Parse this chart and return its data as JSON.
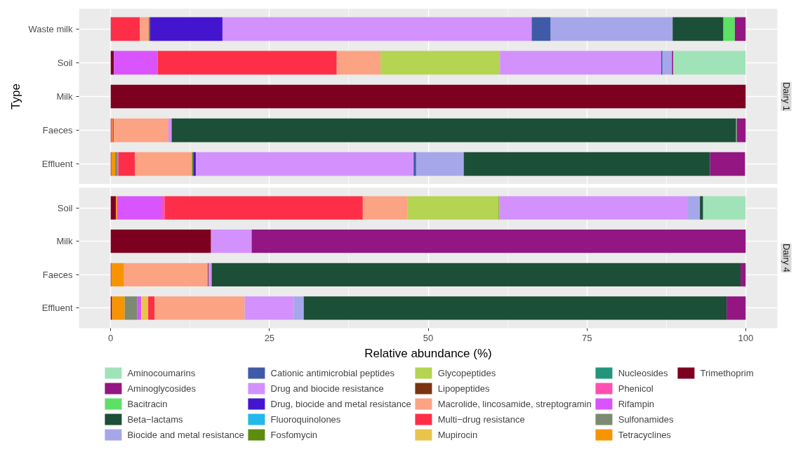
{
  "chart_data": [
    {
      "type": "bar",
      "title": "Dairy 1",
      "orientation": "horizontal",
      "stacked": true,
      "ylabel": "Type",
      "categories": [
        "Waste milk",
        "Soil",
        "Milk",
        "Faeces",
        "Effluent"
      ],
      "xlim": [
        -5,
        105
      ],
      "xticks": [
        0,
        25,
        50,
        75,
        100
      ],
      "grid": true,
      "legend": "bottom",
      "tick_labels": "y",
      "series": [
        {
          "color": "#7e0020",
          "values": [
            0.1,
            0.5,
            100,
            0.1,
            0.1
          ]
        },
        {
          "color": "#f79400",
          "values": [
            0,
            0,
            0,
            0.2,
            0.6
          ]
        },
        {
          "color": "#7d8a72",
          "values": [
            0,
            0,
            0,
            0,
            0.4
          ]
        },
        {
          "color": "#d954fc",
          "values": [
            0,
            6.9,
            0,
            0,
            0.1
          ]
        },
        {
          "color": "#ff4fb0",
          "values": [
            0,
            0,
            0,
            0,
            0
          ]
        },
        {
          "color": "#23957a",
          "values": [
            0,
            0,
            0,
            0,
            0
          ]
        },
        {
          "color": "#e8c44a",
          "values": [
            0,
            0,
            0,
            0,
            0
          ]
        },
        {
          "color": "#ff2e48",
          "values": [
            4.5,
            28.2,
            0,
            0.2,
            2.6
          ]
        },
        {
          "color": "#fca384",
          "values": [
            1.4,
            6.9,
            0,
            8.6,
            9.0
          ]
        },
        {
          "color": "#7a3510",
          "values": [
            0,
            0,
            0,
            0,
            0
          ]
        },
        {
          "color": "#b4d452",
          "values": [
            0,
            18.8,
            0,
            0,
            null
          ]
        },
        {
          "color": "#5e8c10",
          "values": [
            0.2,
            0,
            0,
            0,
            0.2
          ]
        },
        {
          "color": "#26b8e8",
          "values": [
            0,
            0,
            0,
            0,
            0
          ]
        },
        {
          "color": "#4415cf",
          "values": [
            11.4,
            0,
            0,
            0,
            0.4
          ]
        },
        {
          "color": "#d391fd",
          "values": [
            48.7,
            25.4,
            0,
            0.5,
            34.3
          ]
        },
        {
          "color": "#3f5ba8",
          "values": [
            3.0,
            0.2,
            0,
            0,
            0.4
          ]
        },
        {
          "color": "#a5a7ea",
          "values": [
            19.2,
            1.5,
            0,
            0,
            7.5
          ]
        },
        {
          "color": "#1b4f37",
          "values": [
            8.0,
            0,
            0,
            88.9,
            38.8
          ]
        },
        {
          "color": "#5ee065",
          "values": [
            1.8,
            0,
            0,
            0.1,
            0
          ]
        },
        {
          "color": "#931682",
          "values": [
            1.7,
            0.2,
            0,
            1.4,
            5.5
          ]
        },
        {
          "color": "#a1e3b8",
          "values": [
            0,
            11.4,
            0,
            0,
            0
          ]
        }
      ]
    },
    {
      "type": "bar",
      "title": "Dairy 4",
      "orientation": "horizontal",
      "stacked": true,
      "xlabel": "Relative abundance (%)",
      "categories": [
        "Soil",
        "Milk",
        "Faeces",
        "Effluent"
      ],
      "xlim": [
        -5,
        105
      ],
      "xticks": [
        0,
        25,
        50,
        75,
        100
      ],
      "grid": true,
      "legend": "bottom",
      "series": [
        {
          "name": "Trimethoprim",
          "color": "#7e0020",
          "values": [
            0.8,
            15.8,
            0.1,
            0.2
          ]
        },
        {
          "name": "Tetracyclines",
          "color": "#f79400",
          "values": [
            0.2,
            0,
            2.0,
            2.0
          ]
        },
        {
          "name": "Sulfonamides",
          "color": "#7d8a72",
          "values": [
            0,
            0,
            0,
            2.0
          ]
        },
        {
          "name": "Rifampin",
          "color": "#d954fc",
          "values": [
            7.1,
            0,
            0,
            0.6
          ]
        },
        {
          "name": "Phenicol",
          "color": "#ff4fb0",
          "values": [
            0.4,
            0,
            0,
            0
          ]
        },
        {
          "name": "Nucleosides",
          "color": "#23957a",
          "values": [
            0,
            0,
            0,
            0
          ]
        },
        {
          "name": "Mupirocin",
          "color": "#e8c44a",
          "values": [
            0,
            0,
            0,
            1.1
          ]
        },
        {
          "name": "Multi−drug resistance",
          "color": "#ff2e48",
          "values": [
            31.2,
            0,
            0,
            1.0
          ]
        },
        {
          "name": "Macrolide, lincosamide, streptogramin",
          "color": "#fca384",
          "values": [
            7.0,
            0,
            13.2,
            14.2
          ]
        },
        {
          "name": "Lipopeptides",
          "color": "#7a3510",
          "values": [
            0,
            0,
            0.1,
            0
          ]
        },
        {
          "name": "Glycopeptides",
          "color": "#b4d452",
          "values": [
            14.4,
            0,
            0,
            0
          ]
        },
        {
          "name": "Fosfomycin",
          "color": "#5e8c10",
          "values": [
            0.1,
            0,
            0,
            0
          ]
        },
        {
          "name": "Fluoroquinolones",
          "color": "#26b8e8",
          "values": [
            0,
            0,
            0,
            0
          ]
        },
        {
          "name": "Drug, biocide and metal resistance",
          "color": "#4415cf",
          "values": [
            0,
            0,
            0,
            0
          ]
        },
        {
          "name": "Drug and biocide resistance",
          "color": "#d391fd",
          "values": [
            29.6,
            6.4,
            0.5,
            7.7
          ]
        },
        {
          "name": "Cationic antimicrobial peptides",
          "color": "#3f5ba8",
          "values": [
            0,
            0,
            0,
            0
          ]
        },
        {
          "name": "Biocide and metal resistance",
          "color": "#a5a7ea",
          "values": [
            2.0,
            0,
            0,
            1.6
          ]
        },
        {
          "name": "Beta−lactams",
          "color": "#1b4f37",
          "values": [
            0.5,
            0,
            83.3,
            66.6
          ]
        },
        {
          "name": "Bacitracin",
          "color": "#5ee065",
          "values": [
            0,
            0,
            0,
            0
          ]
        },
        {
          "name": "Aminoglycosides",
          "color": "#931682",
          "values": [
            0,
            77.8,
            0.8,
            3.0
          ]
        },
        {
          "name": "Aminocoumarins",
          "color": "#a1e3b8",
          "values": [
            6.7,
            0,
            0,
            0
          ]
        }
      ]
    }
  ]
}
